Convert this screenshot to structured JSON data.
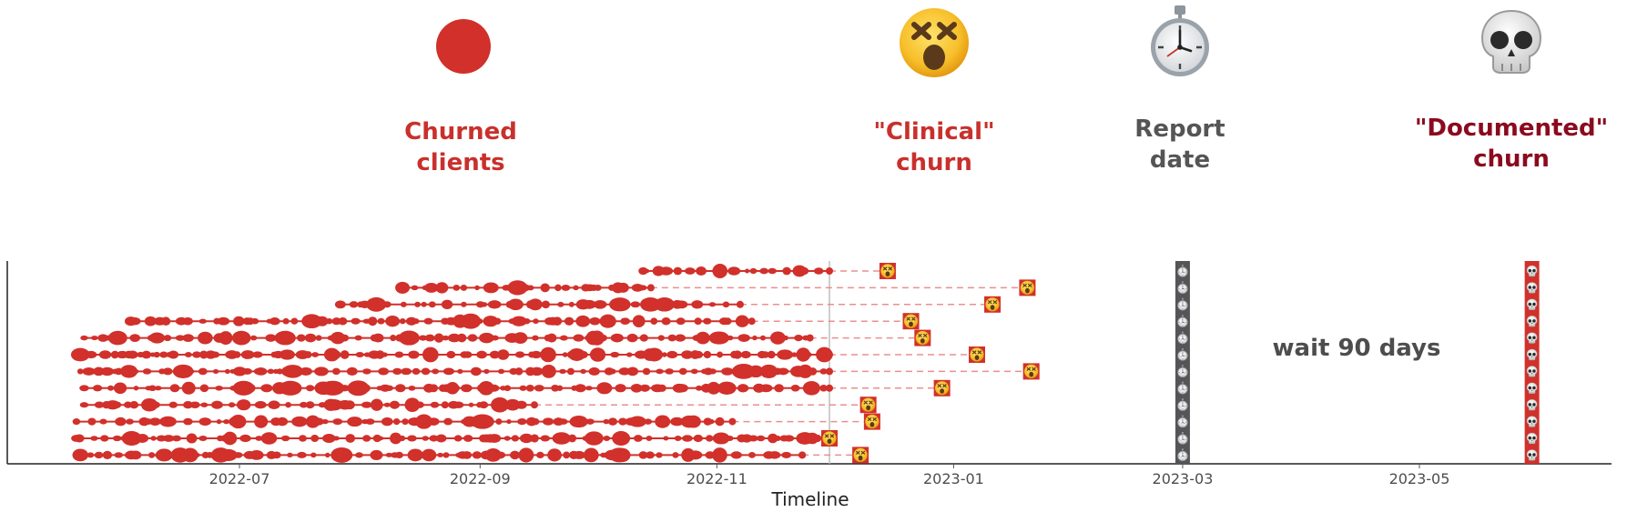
{
  "legend": [
    {
      "label_line1": "Churned",
      "label_line2": "clients",
      "color": "#c9302c",
      "icon": "red-dot-icon"
    },
    {
      "label_line1": "\"Clinical\"",
      "label_line2": "churn",
      "color": "#c9302c",
      "icon": "dizzy-face-icon"
    },
    {
      "label_line1": "Report",
      "label_line2": "date",
      "color": "#555555",
      "icon": "stopwatch-icon"
    },
    {
      "label_line1": "\"Documented\"",
      "label_line2": "churn",
      "color": "#8b0a1e",
      "icon": "skull-icon"
    }
  ],
  "chart_data": {
    "type": "timeline",
    "xlabel": "Timeline",
    "x_ticks": [
      "2022-07",
      "2022-09",
      "2022-11",
      "2023-01",
      "2023-03",
      "2023-05"
    ],
    "xlim": [
      "2022-05-15",
      "2023-06-30"
    ],
    "annotation": "wait 90 days",
    "marker_date": "2022-11-30",
    "report_date": "2023-03-01",
    "documented_churn_date": "2023-05-30",
    "clients": [
      {
        "start": "2022-10-13",
        "last_activity": "2022-11-30",
        "clinical_churn": "2022-12-15"
      },
      {
        "start": "2022-08-12",
        "last_activity": "2022-10-15",
        "clinical_churn": "2023-01-20"
      },
      {
        "start": "2022-07-27",
        "last_activity": "2022-11-07",
        "clinical_churn": "2023-01-11"
      },
      {
        "start": "2022-06-03",
        "last_activity": "2022-11-10",
        "clinical_churn": "2022-12-21"
      },
      {
        "start": "2022-05-22",
        "last_activity": "2022-11-25",
        "clinical_churn": "2022-12-24"
      },
      {
        "start": "2022-05-21",
        "last_activity": "2022-11-30",
        "clinical_churn": "2023-01-07"
      },
      {
        "start": "2022-05-21",
        "last_activity": "2022-11-30",
        "clinical_churn": "2023-01-21"
      },
      {
        "start": "2022-05-22",
        "last_activity": "2022-11-30",
        "clinical_churn": "2022-12-29"
      },
      {
        "start": "2022-05-22",
        "last_activity": "2022-09-15",
        "clinical_churn": "2022-12-10"
      },
      {
        "start": "2022-05-20",
        "last_activity": "2022-11-05",
        "clinical_churn": "2022-12-11"
      },
      {
        "start": "2022-05-20",
        "last_activity": "2022-11-27",
        "clinical_churn": "2022-11-30"
      },
      {
        "start": "2022-05-21",
        "last_activity": "2022-11-23",
        "clinical_churn": "2022-12-08"
      }
    ]
  }
}
